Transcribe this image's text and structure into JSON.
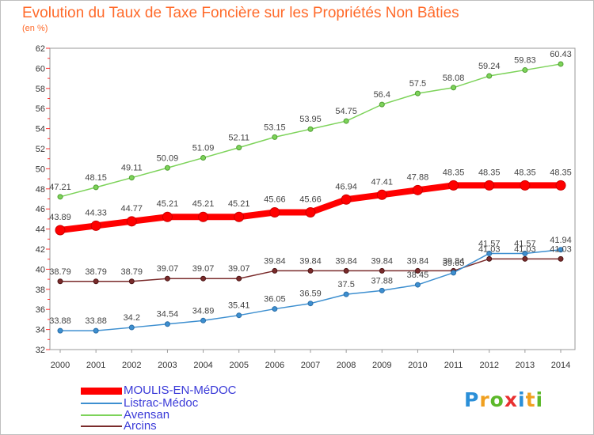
{
  "title": "Evolution du Taux de Taxe Foncière sur les Propriétés Non Bâties",
  "unit_label": "(en %)",
  "logo": {
    "letters": [
      "P",
      "r",
      "o",
      "x",
      "i",
      "t",
      "i"
    ],
    "colors": [
      "#2b8fd8",
      "#f0a020",
      "#5cb82a",
      "#e83030",
      "#2b8fd8",
      "#f0a020",
      "#5cb82a"
    ]
  },
  "chart_data": {
    "type": "line",
    "x": [
      "2000",
      "2001",
      "2002",
      "2003",
      "2004",
      "2005",
      "2006",
      "2007",
      "2008",
      "2009",
      "2010",
      "2011",
      "2012",
      "2013",
      "2014"
    ],
    "ylim": [
      32,
      62
    ],
    "yticks": [
      "32",
      "34",
      "36",
      "38",
      "40",
      "42",
      "44",
      "46",
      "48",
      "50",
      "52",
      "54",
      "56",
      "58",
      "60",
      "62"
    ],
    "grid": false,
    "legend_position": "bottom-left",
    "series": [
      {
        "name": "MOULIS-EN-MéDOC",
        "color": "#ff0000",
        "values": [
          43.89,
          44.33,
          44.77,
          45.21,
          45.21,
          45.21,
          45.66,
          45.66,
          46.94,
          47.41,
          47.88,
          48.35,
          48.35,
          48.35,
          48.35
        ],
        "labels": [
          "43.89",
          "44.33",
          "44.77",
          "45.21",
          "45.21",
          "45.21",
          "45.66",
          "45.66",
          "46.94",
          "47.41",
          "47.88",
          "48.35",
          "48.35",
          "48.35",
          "48.35"
        ]
      },
      {
        "name": "Listrac-Médoc",
        "color": "#3d8fd0",
        "values": [
          33.88,
          33.88,
          34.2,
          34.54,
          34.89,
          35.41,
          36.05,
          36.59,
          37.5,
          37.88,
          38.45,
          39.65,
          41.57,
          41.57,
          41.94
        ],
        "labels": [
          "33.88",
          "33.88",
          "34.2",
          "34.54",
          "34.89",
          "35.41",
          "36.05",
          "36.59",
          "37.5",
          "37.88",
          "38.45",
          "39.65",
          "41.57",
          "41.57",
          "41.94"
        ]
      },
      {
        "name": "Avensan",
        "color": "#7dd35a",
        "values": [
          47.21,
          48.15,
          49.11,
          50.09,
          51.09,
          52.11,
          53.15,
          53.95,
          54.75,
          56.4,
          57.5,
          58.08,
          59.24,
          59.83,
          60.43
        ],
        "labels": [
          "47.21",
          "48.15",
          "49.11",
          "50.09",
          "51.09",
          "52.11",
          "53.15",
          "53.95",
          "54.75",
          "56.4",
          "57.5",
          "58.08",
          "59.24",
          "59.83",
          "60.43"
        ]
      },
      {
        "name": "Arcins",
        "color": "#7a2b2b",
        "values": [
          38.79,
          38.79,
          38.79,
          39.07,
          39.07,
          39.07,
          39.84,
          39.84,
          39.84,
          39.84,
          39.84,
          39.84,
          41.03,
          41.03,
          41.03
        ],
        "labels": [
          "38.79",
          "38.79",
          "38.79",
          "39.07",
          "39.07",
          "39.07",
          "39.84",
          "39.84",
          "39.84",
          "39.84",
          "39.84",
          "39.84",
          "41.03",
          "41.03",
          "41.03"
        ]
      }
    ]
  }
}
